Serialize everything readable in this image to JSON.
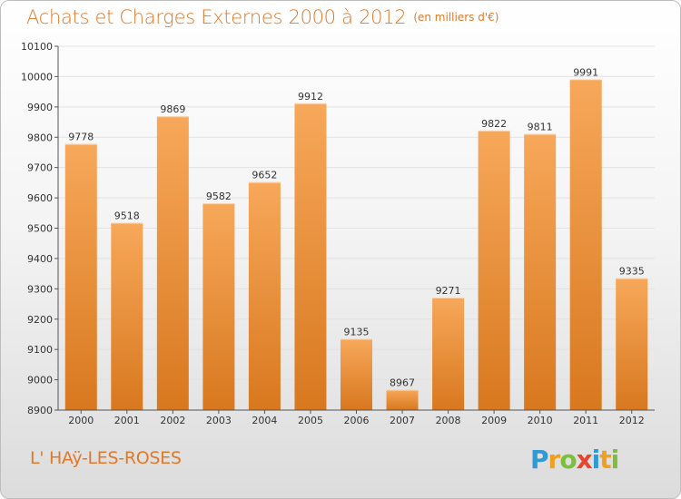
{
  "title": "Achats et Charges Externes 2000 à 2012",
  "unit": "(en milliers d'€)",
  "place": "L' HAÿ-LES-ROSES",
  "brand": {
    "text": "Proxiti",
    "letters": [
      {
        "ch": "P",
        "color": "#2f9ad6"
      },
      {
        "ch": "r",
        "color": "#f0a020"
      },
      {
        "ch": "o",
        "color": "#7cbf3a"
      },
      {
        "ch": "x",
        "color": "#e8432f"
      },
      {
        "ch": "i",
        "color": "#2f9ad6"
      },
      {
        "ch": "t",
        "color": "#f0a020"
      },
      {
        "ch": "i",
        "color": "#7cbf3a"
      }
    ]
  },
  "colors": {
    "accent": "#e07a2a",
    "bar_top": "#f7a85a",
    "bar_bottom": "#d8781f",
    "grid": "#e2e2e2",
    "axis": "#555555"
  },
  "chart_data": {
    "type": "bar",
    "categories": [
      "2000",
      "2001",
      "2002",
      "2003",
      "2004",
      "2005",
      "2006",
      "2007",
      "2008",
      "2009",
      "2010",
      "2011",
      "2012"
    ],
    "values": [
      9778,
      9518,
      9869,
      9582,
      9652,
      9912,
      9135,
      8967,
      9271,
      9822,
      9811,
      9991,
      9335
    ],
    "yticks": [
      8900,
      9000,
      9100,
      9200,
      9300,
      9400,
      9500,
      9600,
      9700,
      9800,
      9900,
      10000,
      10100
    ],
    "ylim": [
      8900,
      10100
    ],
    "grid": true,
    "data_labels": true
  }
}
